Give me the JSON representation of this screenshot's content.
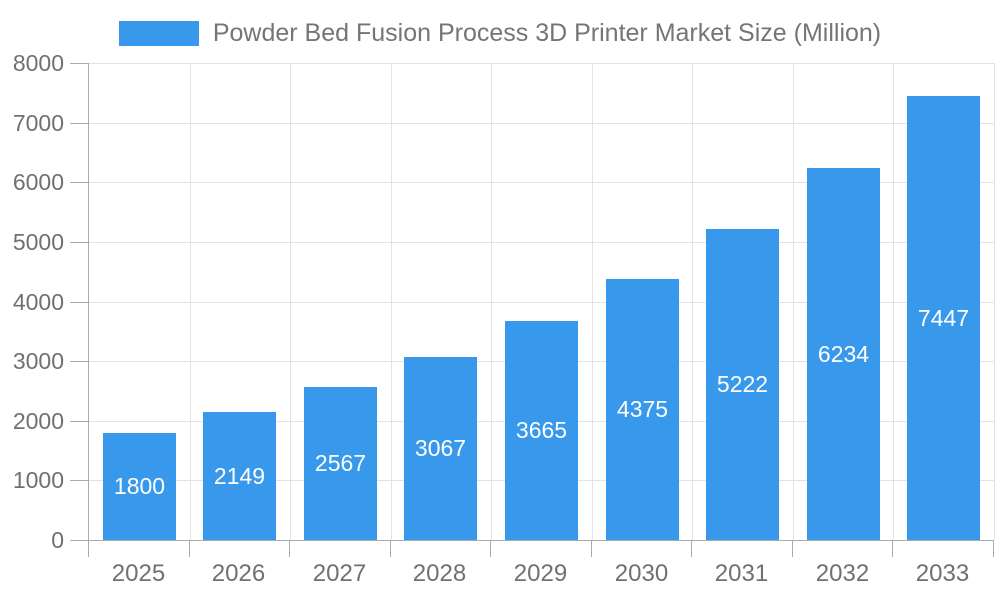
{
  "legend": {
    "label": "Powder Bed Fusion Process 3D Printer Market Size (Million)",
    "swatch_color": "#3898ec"
  },
  "chart_data": {
    "type": "bar",
    "title": "Powder Bed Fusion Process 3D Printer Market Size (Million)",
    "categories": [
      "2025",
      "2026",
      "2027",
      "2028",
      "2029",
      "2030",
      "2031",
      "2032",
      "2033"
    ],
    "values": [
      1800,
      2149,
      2567,
      3067,
      3665,
      4375,
      5222,
      6234,
      7447
    ],
    "xlabel": "",
    "ylabel": "",
    "ylim": [
      0,
      8000
    ],
    "yticks": [
      0,
      1000,
      2000,
      3000,
      4000,
      5000,
      6000,
      7000,
      8000
    ],
    "grid": true,
    "legend_position": "top",
    "bar_color": "#3898ec",
    "value_label_color": "#ffffff",
    "value_labels_inside": true
  },
  "colors": {
    "bar": "#3898ec",
    "grid": "#e2e2e2",
    "axis_line": "#aaaaaa",
    "axis_text": "#707070",
    "legend_text": "#757575",
    "bar_label_text": "#ffffff",
    "background": "#ffffff"
  }
}
